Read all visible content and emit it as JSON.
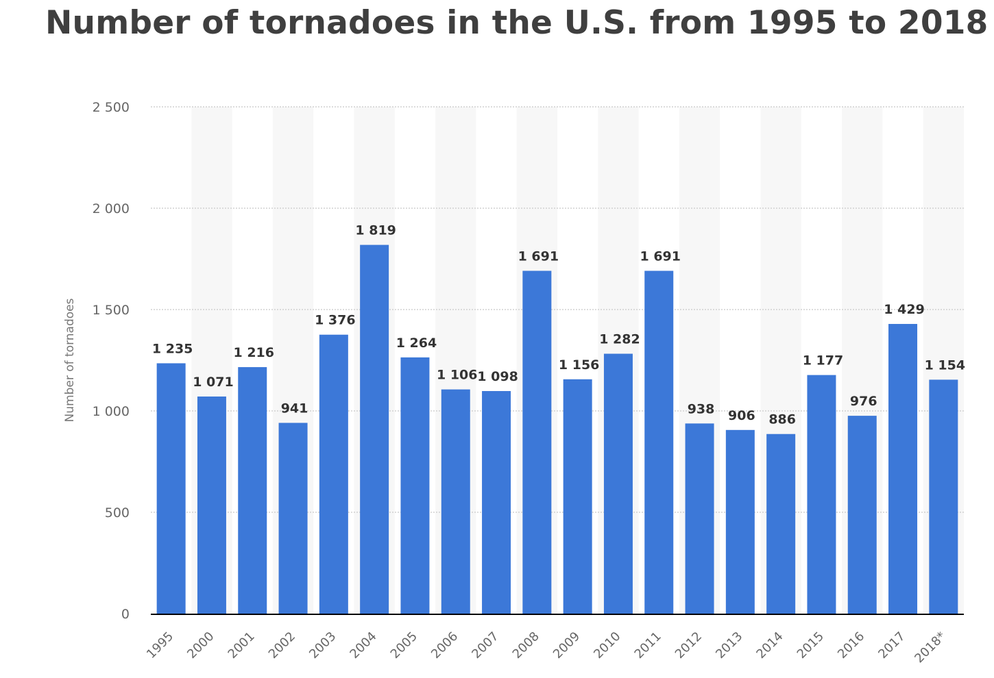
{
  "chart_data": {
    "type": "bar",
    "title": "Number of tornadoes in the U.S. from 1995 to 2018",
    "xlabel": "",
    "ylabel": "Number of tornadoes",
    "ylim": [
      0,
      2500
    ],
    "yticks": [
      0,
      500,
      1000,
      1500,
      2000,
      2500
    ],
    "ytick_labels": [
      "0",
      "500",
      "1 000",
      "1 500",
      "2 000",
      "2 500"
    ],
    "categories": [
      "1995",
      "2000",
      "2001",
      "2002",
      "2003",
      "2004",
      "2005",
      "2006",
      "2007",
      "2008",
      "2009",
      "2010",
      "2011",
      "2012",
      "2013",
      "2014",
      "2015",
      "2016",
      "2017",
      "2018*"
    ],
    "values": [
      1235,
      1071,
      1216,
      941,
      1376,
      1819,
      1264,
      1106,
      1098,
      1691,
      1156,
      1282,
      1691,
      938,
      906,
      886,
      1177,
      976,
      1429,
      1154
    ],
    "value_labels": [
      "1 235",
      "1 071",
      "1 216",
      "941",
      "1 376",
      "1 819",
      "1 264",
      "1 106",
      "1 098",
      "1 691",
      "1 156",
      "1 282",
      "1 691",
      "938",
      "906",
      "886",
      "1 177",
      "976",
      "1 429",
      "1 154"
    ],
    "grid": true,
    "bar_color": "#3c78d8",
    "band_color": "#f7f7f7",
    "grid_color": "#c8c8c8",
    "axis_color": "#000000"
  }
}
